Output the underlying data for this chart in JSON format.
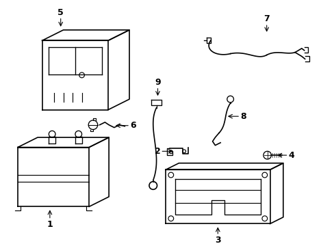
{
  "background_color": "#ffffff",
  "line_color": "#000000",
  "line_width": 1.2,
  "label_fontsize": 9
}
